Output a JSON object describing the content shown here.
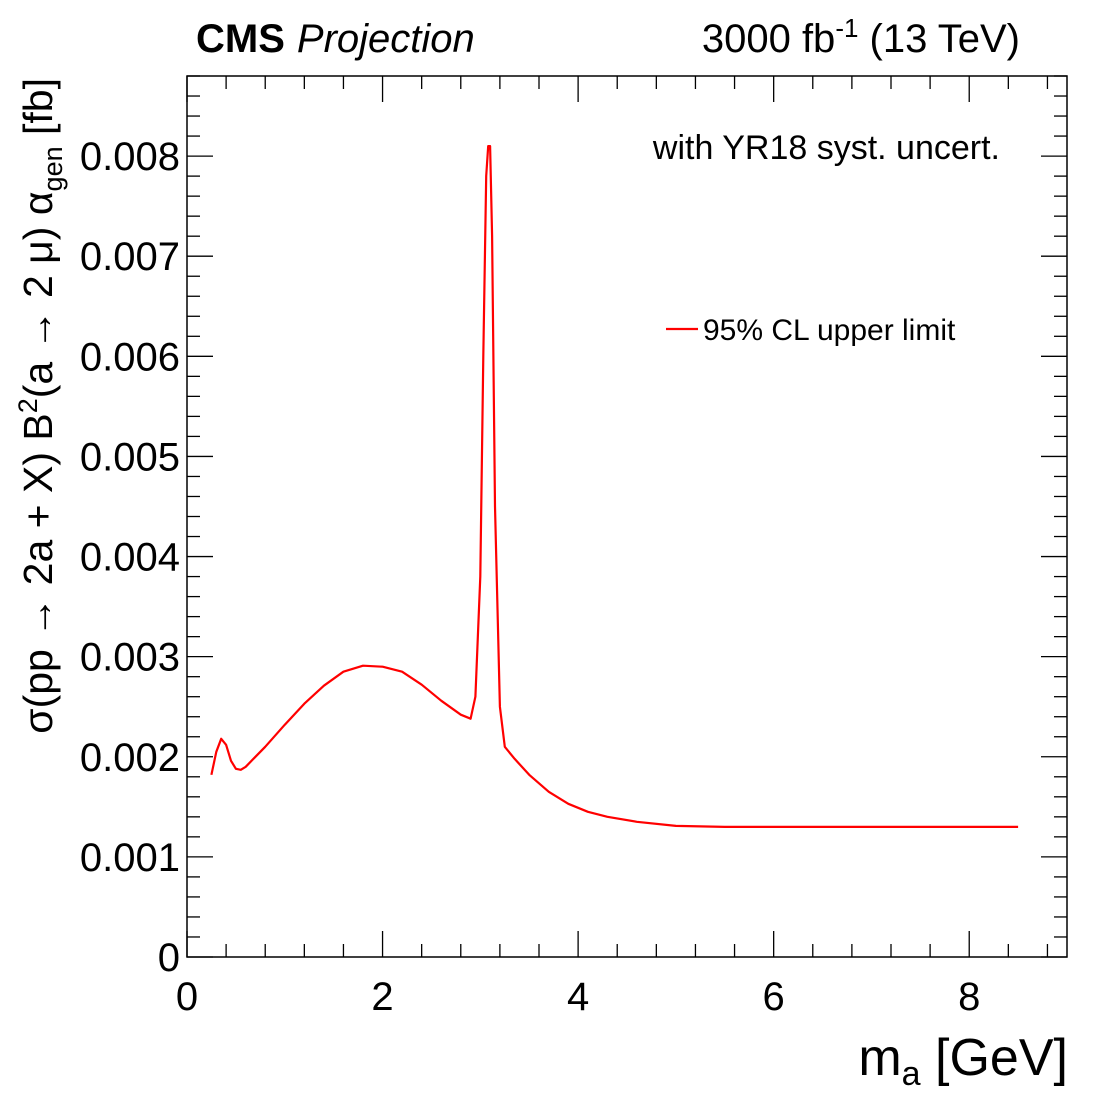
{
  "header": {
    "experiment": "CMS",
    "status": "Projection",
    "lumi_value": "3000 fb",
    "lumi_exponent": "-1",
    "energy": " (13 TeV)"
  },
  "annotation": "with YR18 syst. uncert.",
  "axes": {
    "xlabel_main": "m",
    "xlabel_sub": "a",
    "xlabel_unit": " [GeV]",
    "ylabel_part1": "σ(pp → 2a + X) B",
    "ylabel_sup": "2",
    "ylabel_part2": "(a → 2 μ) α",
    "ylabel_sub": "gen",
    "ylabel_unit": " [fb]"
  },
  "colors": {
    "series": "#ff0000",
    "frame": "#000000"
  },
  "chart_data": {
    "type": "line",
    "xlim": [
      0,
      9
    ],
    "ylim": [
      0,
      0.0088
    ],
    "x_ticks": [
      0,
      2,
      4,
      6,
      8
    ],
    "x_tick_labels": [
      "0",
      "2",
      "4",
      "6",
      "8"
    ],
    "y_ticks": [
      0,
      0.001,
      0.002,
      0.003,
      0.004,
      0.005,
      0.006,
      0.007,
      0.008
    ],
    "y_tick_labels": [
      "0",
      "0.001",
      "0.002",
      "0.003",
      "0.004",
      "0.005",
      "0.006",
      "0.007",
      "0.008"
    ],
    "legend_position": "top-right",
    "grid": false,
    "series": [
      {
        "name": "95% CL upper limit",
        "x": [
          0.25,
          0.3,
          0.35,
          0.4,
          0.45,
          0.5,
          0.55,
          0.6,
          0.7,
          0.8,
          1.0,
          1.2,
          1.4,
          1.6,
          1.8,
          2.0,
          2.2,
          2.4,
          2.6,
          2.8,
          2.9,
          2.95,
          3.0,
          3.03,
          3.06,
          3.08,
          3.1,
          3.12,
          3.15,
          3.2,
          3.25,
          3.35,
          3.5,
          3.7,
          3.9,
          4.1,
          4.3,
          4.6,
          5.0,
          5.5,
          6.0,
          6.5,
          7.0,
          7.5,
          8.0,
          8.5
        ],
        "y": [
          0.00182,
          0.00205,
          0.00218,
          0.00212,
          0.00196,
          0.00188,
          0.00187,
          0.0019,
          0.002,
          0.0021,
          0.00232,
          0.00253,
          0.00271,
          0.00285,
          0.00291,
          0.0029,
          0.00285,
          0.00272,
          0.00256,
          0.00242,
          0.00238,
          0.0026,
          0.0038,
          0.006,
          0.0078,
          0.0081,
          0.0081,
          0.0072,
          0.0045,
          0.0025,
          0.0021,
          0.00198,
          0.00182,
          0.00165,
          0.00153,
          0.00145,
          0.0014,
          0.00135,
          0.00131,
          0.0013,
          0.0013,
          0.0013,
          0.0013,
          0.0013,
          0.0013,
          0.0013
        ]
      }
    ]
  }
}
